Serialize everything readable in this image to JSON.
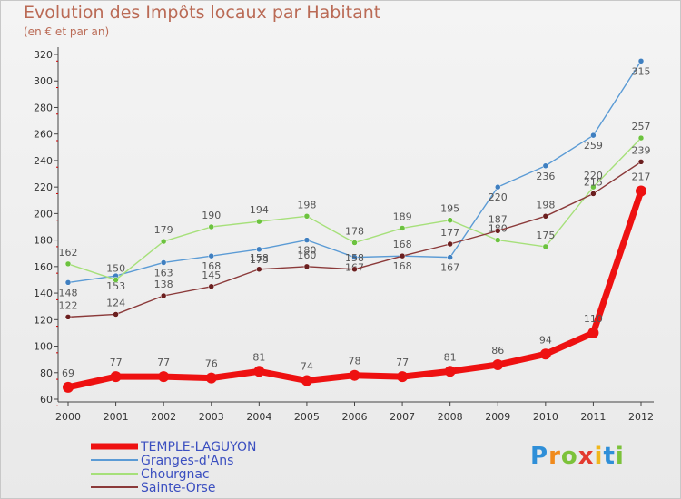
{
  "header": {
    "title": "Evolution des Impôts locaux par Habitant",
    "subtitle": "(en € et par an)"
  },
  "logo": {
    "text": "Proxiti"
  },
  "chart_data": {
    "type": "line",
    "x": [
      "2000",
      "2001",
      "2002",
      "2003",
      "2004",
      "2005",
      "2006",
      "2007",
      "2008",
      "2009",
      "2010",
      "2011",
      "2012"
    ],
    "ylim": [
      60,
      320
    ],
    "yticks": [
      60,
      80,
      100,
      120,
      140,
      160,
      180,
      200,
      220,
      240,
      260,
      280,
      300,
      320
    ],
    "grid": false,
    "legend_position": "bottom-left",
    "series": [
      {
        "name": "TEMPLE-LAGUYON",
        "color": "#ee1111",
        "emphasis": true,
        "values": [
          69,
          77,
          77,
          76,
          81,
          74,
          78,
          77,
          81,
          86,
          94,
          110,
          217
        ],
        "labels": [
          "69",
          "77",
          "77",
          "76",
          "81",
          "74",
          "78",
          "77",
          "81",
          "86",
          "94",
          "110",
          "217"
        ]
      },
      {
        "name": "Granges-d'Ans",
        "color": "#5b9bd5",
        "marker": "#3f7fc0",
        "values": [
          148,
          153,
          163,
          168,
          173,
          180,
          167,
          168,
          167,
          220,
          236,
          259,
          315
        ],
        "labels": [
          "148",
          "153",
          "163",
          "168",
          "173",
          "180",
          "167",
          "168",
          "167",
          "220",
          "236",
          "259",
          "315"
        ]
      },
      {
        "name": "Chourgnac",
        "color": "#a6e07a",
        "marker": "#6cc23f",
        "values": [
          162,
          150,
          179,
          190,
          194,
          198,
          178,
          189,
          195,
          180,
          175,
          220,
          257
        ],
        "labels": [
          "162",
          "150",
          "179",
          "190",
          "194",
          "198",
          "178",
          "189",
          "195",
          "180",
          "175",
          "220",
          "257"
        ]
      },
      {
        "name": "Sainte-Orse",
        "color": "#8b3a3a",
        "marker": "#6b1f1f",
        "values": [
          122,
          124,
          138,
          145,
          158,
          160,
          158,
          168,
          177,
          187,
          198,
          215,
          239
        ],
        "labels": [
          "122",
          "124",
          "138",
          "145",
          "158",
          "160",
          "158",
          "168",
          "177",
          "187",
          "198",
          "215",
          "239"
        ]
      }
    ]
  }
}
